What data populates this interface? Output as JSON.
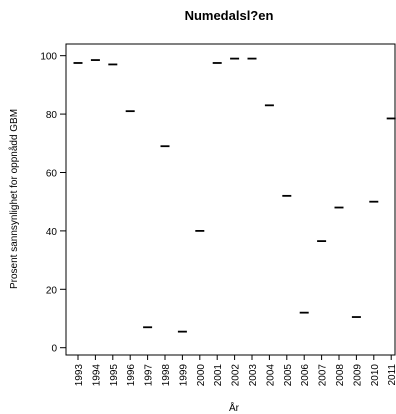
{
  "chart_data": {
    "type": "scatter",
    "title": "Numedalsl?en",
    "xlabel": "År",
    "ylabel": "Prosent sannsynlighet for oppnådd GBM",
    "x": [
      "1993",
      "1994",
      "1995",
      "1996",
      "1997",
      "1998",
      "1999",
      "2000",
      "2001",
      "2002",
      "2003",
      "2004",
      "2005",
      "2006",
      "2007",
      "2008",
      "2009",
      "2010",
      "2011"
    ],
    "values": [
      97.5,
      98.5,
      97,
      81,
      7,
      69,
      5.5,
      40,
      97.5,
      99,
      99,
      83,
      52,
      12,
      36.5,
      48,
      10.5,
      50,
      78.5
    ],
    "ylim": [
      -2.5,
      104
    ],
    "yticks": [
      0,
      20,
      40,
      60,
      80,
      100
    ],
    "marker": "horizontal-dash",
    "grid": false,
    "colors": {
      "mark": "#000000",
      "axis": "#000000",
      "background": "#ffffff"
    }
  }
}
